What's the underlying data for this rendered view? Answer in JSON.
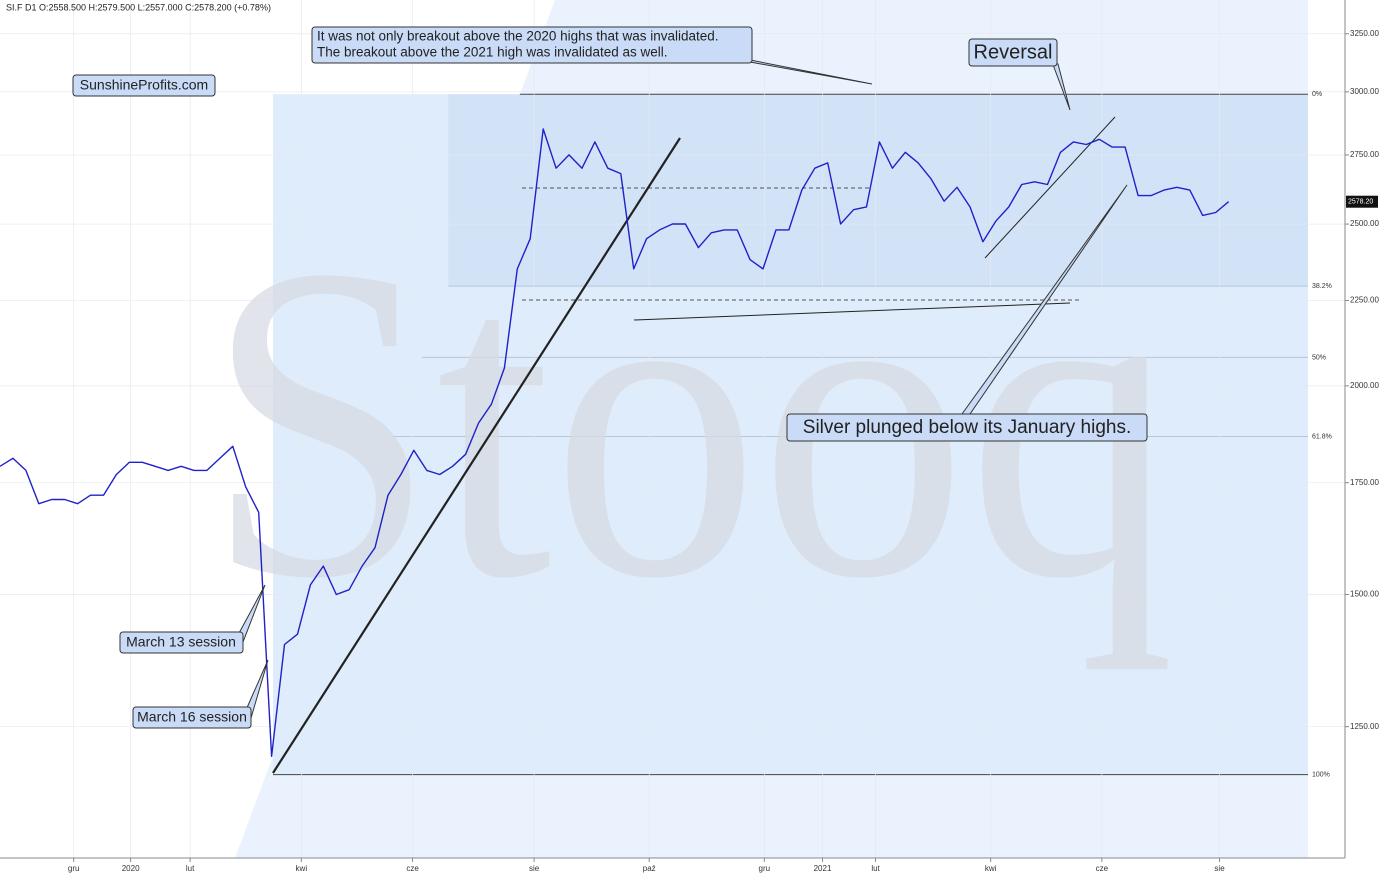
{
  "chart_data": {
    "type": "line",
    "header": "SI.F  D1  O:2558.500  H:2579.500  L:2557.000  C:2578.200  (+0.78%)",
    "watermark": "Stooq",
    "brand": "SunshineProfits.com",
    "annotations": [
      [
        "It was not only breakout above the 2020 highs that was invalidated.",
        "The breakout above the 2021 high was invalidated as well."
      ],
      [
        "Reversal"
      ],
      [
        "Silver plunged below its January highs."
      ],
      [
        "March 13 session"
      ],
      [
        "March 16 session"
      ]
    ],
    "log_scale": true,
    "color": "#1f22c8",
    "values": [
      1790,
      1810,
      1780,
      1700,
      1710,
      1710,
      1700,
      1720,
      1720,
      1770,
      1800,
      1800,
      1790,
      1780,
      1790,
      1780,
      1780,
      1810,
      1840,
      1740,
      1680,
      1200,
      1400,
      1420,
      1520,
      1560,
      1500,
      1510,
      1560,
      1600,
      1720,
      1770,
      1830,
      1780,
      1770,
      1790,
      1820,
      1900,
      1950,
      2050,
      2350,
      2450,
      2850,
      2700,
      2750,
      2700,
      2800,
      2700,
      2680,
      2350,
      2450,
      2480,
      2500,
      2500,
      2420,
      2470,
      2480,
      2480,
      2380,
      2350,
      2480,
      2480,
      2620,
      2700,
      2720,
      2500,
      2550,
      2560,
      2800,
      2700,
      2760,
      2720,
      2660,
      2580,
      2630,
      2560,
      2440,
      2510,
      2560,
      2640,
      2650,
      2640,
      2760,
      2800,
      2790,
      2810,
      2780,
      2780,
      2600,
      2600,
      2620,
      2630,
      2620,
      2530,
      2540,
      2578.2
    ],
    "last_price": {
      "value": 2578.2,
      "label": "2578.20"
    },
    "xlim": [
      0,
      104
    ],
    "xticks": [
      {
        "value": 5.7,
        "label": "gru"
      },
      {
        "value": 10.1,
        "label": "2020"
      },
      {
        "value": 14.7,
        "label": "lut"
      },
      {
        "value": 23.3,
        "label": "kwi"
      },
      {
        "value": 31.9,
        "label": "cze"
      },
      {
        "value": 41.3,
        "label": "sie"
      },
      {
        "value": 50.2,
        "label": "paź"
      },
      {
        "value": 59.1,
        "label": "gru"
      },
      {
        "value": 63.6,
        "label": "2021"
      },
      {
        "value": 67.7,
        "label": "lut"
      },
      {
        "value": 76.6,
        "label": "kwi"
      },
      {
        "value": 85.2,
        "label": "cze"
      },
      {
        "value": 94.3,
        "label": "sie"
      }
    ],
    "ylim": [
      1043,
      3405
    ],
    "yticks": [
      {
        "value": 1250,
        "label": "1250.00"
      },
      {
        "value": 1500,
        "label": "1500.00"
      },
      {
        "value": 1750,
        "label": "1750.00"
      },
      {
        "value": 2000,
        "label": "2000.00"
      },
      {
        "value": 2250,
        "label": "2250.00"
      },
      {
        "value": 2500,
        "label": "2500.00"
      },
      {
        "value": 2750,
        "label": "2750.00"
      },
      {
        "value": 3000,
        "label": "3000.00"
      },
      {
        "value": 3250,
        "label": "3250.00"
      }
    ],
    "fib_levels": [
      {
        "value": 2990,
        "label": "0%"
      },
      {
        "value": 2295,
        "label": "38.2%"
      },
      {
        "value": 2080,
        "label": "50%"
      },
      {
        "value": 1865,
        "label": "61.8%"
      },
      {
        "value": 1170,
        "label": "100%"
      }
    ],
    "grid": true
  }
}
